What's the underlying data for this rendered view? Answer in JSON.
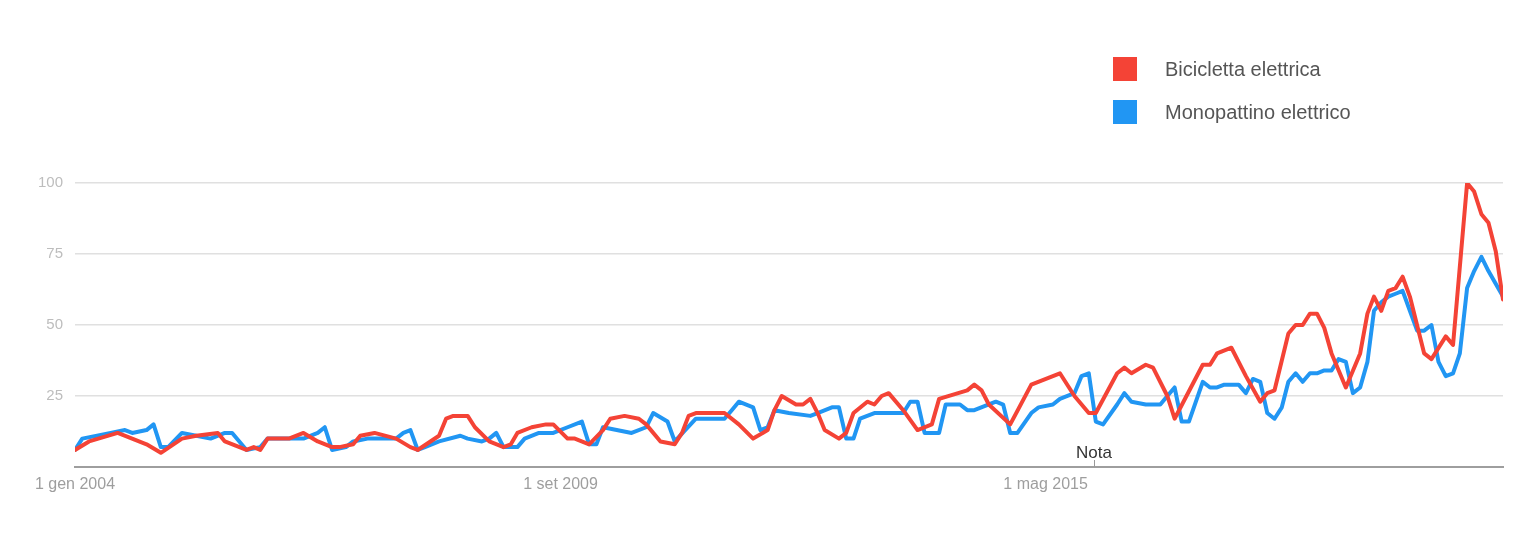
{
  "chart_data": {
    "type": "line",
    "legend": "top right",
    "grid": "y",
    "marker": "none",
    "line_style": "solid",
    "xlim": [
      "2004-01",
      "2020-09"
    ],
    "xticks": [
      {
        "value": "2004-01-01",
        "label": "1 gen 2004"
      },
      {
        "value": "2009-09-01",
        "label": "1 set 2009"
      },
      {
        "value": "2015-05-01",
        "label": "1 mag 2015"
      }
    ],
    "ylim": [
      0,
      100
    ],
    "yticks": [
      25,
      50,
      75,
      100
    ],
    "annotations": [
      "Nota"
    ],
    "series": [
      {
        "name": "Bicicletta elettrica",
        "color": "#f44336",
        "x": [
          "2004-01",
          "2004-03",
          "2004-07",
          "2004-11",
          "2005-01",
          "2005-04",
          "2005-06",
          "2005-09",
          "2005-10",
          "2006-01",
          "2006-02",
          "2006-03",
          "2006-04",
          "2006-07",
          "2006-09",
          "2006-11",
          "2007-01",
          "2007-02",
          "2007-04",
          "2007-05",
          "2007-07",
          "2007-10",
          "2007-12",
          "2008-01",
          "2008-04",
          "2008-05",
          "2008-06",
          "2008-08",
          "2008-09",
          "2008-11",
          "2009-01",
          "2009-02",
          "2009-03",
          "2009-05",
          "2009-07",
          "2009-08",
          "2009-10",
          "2009-11",
          "2010-01",
          "2010-03",
          "2010-04",
          "2010-06",
          "2010-08",
          "2010-09",
          "2010-11",
          "2011-01",
          "2011-02",
          "2011-03",
          "2011-04",
          "2011-08",
          "2011-10",
          "2011-12",
          "2012-02",
          "2012-03",
          "2012-04",
          "2012-06",
          "2012-07",
          "2012-08",
          "2012-09",
          "2012-10",
          "2012-12",
          "2013-01",
          "2013-02",
          "2013-04",
          "2013-05",
          "2013-06",
          "2013-07",
          "2013-09",
          "2013-11",
          "2014-01",
          "2014-02",
          "2014-06",
          "2014-07",
          "2014-08",
          "2014-09",
          "2014-12",
          "2015-03",
          "2015-07",
          "2015-09",
          "2015-11",
          "2015-12",
          "2016-03",
          "2016-04",
          "2016-05",
          "2016-07",
          "2016-08",
          "2016-10",
          "2016-11",
          "2017-03",
          "2017-04",
          "2017-05",
          "2017-07",
          "2017-09",
          "2017-11",
          "2017-12",
          "2018-01",
          "2018-03",
          "2018-04",
          "2018-05",
          "2018-06",
          "2018-07",
          "2018-08",
          "2018-09",
          "2018-11",
          "2019-01",
          "2019-02",
          "2019-03",
          "2019-04",
          "2019-05",
          "2019-06",
          "2019-07",
          "2019-08",
          "2019-10",
          "2019-11",
          "2020-01",
          "2020-02",
          "2020-04",
          "2020-05",
          "2020-06",
          "2020-07",
          "2020-08",
          "2020-09"
        ],
        "values": [
          6,
          9,
          12,
          8,
          5,
          10,
          11,
          12,
          9,
          6,
          7,
          6,
          10,
          10,
          12,
          9,
          7,
          7,
          8,
          11,
          12,
          10,
          7,
          6,
          11,
          17,
          18,
          18,
          14,
          9,
          7,
          8,
          12,
          14,
          15,
          15,
          10,
          10,
          8,
          13,
          17,
          18,
          17,
          15,
          9,
          8,
          12,
          18,
          19,
          19,
          15,
          10,
          13,
          20,
          25,
          22,
          22,
          24,
          19,
          13,
          10,
          12,
          19,
          23,
          22,
          25,
          26,
          20,
          13,
          15,
          24,
          27,
          29,
          27,
          22,
          15,
          29,
          33,
          25,
          19,
          19,
          33,
          35,
          33,
          36,
          35,
          25,
          17,
          36,
          36,
          40,
          42,
          32,
          23,
          26,
          27,
          47,
          50,
          50,
          54,
          54,
          49,
          40,
          28,
          40,
          54,
          60,
          55,
          62,
          63,
          67,
          60,
          40,
          38,
          46,
          43,
          100,
          97,
          89,
          86,
          76,
          59
        ]
      },
      {
        "name": "Monopattino elettrico",
        "color": "#2196f3",
        "x": [
          "2004-01",
          "2004-02",
          "2004-06",
          "2004-08",
          "2004-09",
          "2004-11",
          "2004-12",
          "2005-01",
          "2005-02",
          "2005-04",
          "2005-06",
          "2005-08",
          "2005-10",
          "2005-11",
          "2006-01",
          "2006-03",
          "2006-04",
          "2006-06",
          "2006-09",
          "2006-11",
          "2006-12",
          "2007-01",
          "2007-03",
          "2007-04",
          "2007-06",
          "2007-10",
          "2007-11",
          "2007-12",
          "2008-01",
          "2008-02",
          "2008-04",
          "2008-07",
          "2008-08",
          "2008-10",
          "2008-11",
          "2008-12",
          "2009-01",
          "2009-03",
          "2009-04",
          "2009-06",
          "2009-08",
          "2009-10",
          "2009-12",
          "2010-01",
          "2010-02",
          "2010-03",
          "2010-07",
          "2010-09",
          "2010-10",
          "2010-12",
          "2011-01",
          "2011-04",
          "2011-08",
          "2011-09",
          "2011-10",
          "2011-12",
          "2012-01",
          "2012-02",
          "2012-03",
          "2012-05",
          "2012-08",
          "2012-09",
          "2012-11",
          "2012-12",
          "2013-01",
          "2013-02",
          "2013-03",
          "2013-05",
          "2013-09",
          "2013-10",
          "2013-11",
          "2013-12",
          "2014-02",
          "2014-03",
          "2014-05",
          "2014-06",
          "2014-07",
          "2014-10",
          "2014-11",
          "2014-12",
          "2015-01",
          "2015-03",
          "2015-04",
          "2015-06",
          "2015-07",
          "2015-09",
          "2015-10",
          "2015-11",
          "2015-12",
          "2016-01",
          "2016-03",
          "2016-04",
          "2016-05",
          "2016-07",
          "2016-09",
          "2016-10",
          "2016-11",
          "2016-12",
          "2017-01",
          "2017-03",
          "2017-04",
          "2017-05",
          "2017-06",
          "2017-08",
          "2017-09",
          "2017-10",
          "2017-11",
          "2017-12",
          "2018-01",
          "2018-02",
          "2018-03",
          "2018-04",
          "2018-05",
          "2018-06",
          "2018-07",
          "2018-08",
          "2018-09",
          "2018-10",
          "2018-11",
          "2018-12",
          "2019-01",
          "2019-02",
          "2019-03",
          "2019-04",
          "2019-05",
          "2019-06",
          "2019-07",
          "2019-08",
          "2019-09",
          "2019-10",
          "2019-11",
          "2019-12",
          "2020-01",
          "2020-02",
          "2020-03",
          "2020-04",
          "2020-05",
          "2020-06",
          "2020-07",
          "2020-09"
        ],
        "values": [
          6,
          10,
          12,
          13,
          12,
          13,
          15,
          7,
          7,
          12,
          11,
          10,
          12,
          12,
          6,
          7,
          10,
          10,
          10,
          12,
          14,
          6,
          7,
          9,
          10,
          10,
          12,
          13,
          6,
          7,
          9,
          11,
          10,
          9,
          10,
          12,
          7,
          7,
          10,
          12,
          12,
          14,
          16,
          8,
          8,
          14,
          12,
          14,
          19,
          16,
          9,
          17,
          17,
          20,
          23,
          21,
          13,
          14,
          20,
          19,
          18,
          19,
          21,
          21,
          10,
          10,
          17,
          19,
          19,
          23,
          23,
          12,
          12,
          22,
          22,
          20,
          20,
          23,
          22,
          12,
          12,
          19,
          21,
          22,
          24,
          26,
          32,
          33,
          16,
          15,
          22,
          26,
          23,
          22,
          22,
          25,
          28,
          16,
          16,
          30,
          28,
          28,
          29,
          29,
          26,
          31,
          30,
          19,
          17,
          21,
          30,
          33,
          30,
          33,
          33,
          34,
          34,
          38,
          37,
          26,
          28,
          37,
          55,
          58,
          60,
          61,
          62,
          55,
          48,
          48,
          50,
          37,
          32,
          33,
          40,
          63,
          69,
          74,
          69,
          60
        ]
      }
    ]
  }
}
